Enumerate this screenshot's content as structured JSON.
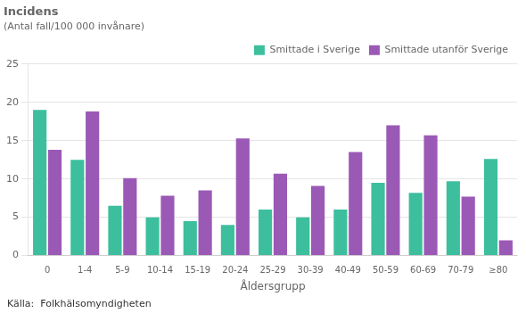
{
  "chart_data": {
    "type": "bar",
    "title": "Incidens",
    "subtitle": "(Antal fall/100 000 invånare)",
    "xlabel": "Åldersgrupp",
    "annotations": [
      "Källa:  Folkhälsomyndigheten"
    ],
    "categories": [
      "0",
      "1-4",
      "5-9",
      "10-14",
      "15-19",
      "20-24",
      "25-29",
      "30-39",
      "40-49",
      "50-59",
      "60-69",
      "70-79",
      "≥80"
    ],
    "series": [
      {
        "name": "Smittade i Sverige",
        "color": "#3dbf9e",
        "values": [
          19.0,
          12.5,
          6.5,
          5.0,
          4.5,
          4.0,
          6.0,
          5.0,
          6.0,
          9.5,
          8.2,
          9.7,
          12.6
        ]
      },
      {
        "name": "Smittade utanför Sverige",
        "color": "#9b59b6",
        "values": [
          13.8,
          18.8,
          10.1,
          7.8,
          8.5,
          15.3,
          10.7,
          9.1,
          13.5,
          17.0,
          15.7,
          7.7,
          2.0
        ]
      }
    ],
    "ylim": [
      0,
      25
    ],
    "yticks": [
      0,
      5,
      10,
      15,
      20,
      25
    ],
    "grid": true,
    "legend": "top"
  }
}
